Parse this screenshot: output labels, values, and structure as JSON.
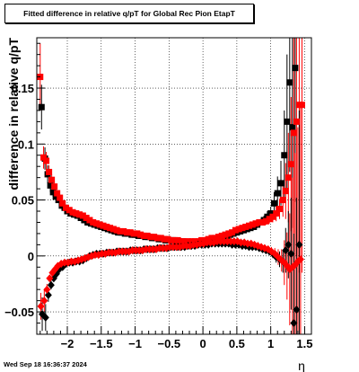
{
  "title": "Fitted difference in relative q/pT for Global Rec Pion EtapT",
  "timestamp": "Wed Sep 18 16:36:37 2024",
  "chart_data": {
    "type": "scatter",
    "title": "Fitted difference in relative q/pT for Global Rec Pion EtapT",
    "xlabel": "η",
    "ylabel": "difference in relative q/pT",
    "xlim": [
      -2.45,
      1.6
    ],
    "ylim": [
      -0.07,
      0.195
    ],
    "x_ticks": [
      -2,
      -1.5,
      -1,
      -0.5,
      0,
      0.5,
      1,
      1.5
    ],
    "x_tick_labels": [
      "−2",
      "−1.5",
      "−1",
      "−0.5",
      "0",
      "0.5",
      "1",
      "1.5"
    ],
    "y_ticks": [
      -0.05,
      0,
      0.05,
      0.1,
      0.15
    ],
    "y_tick_labels": [
      "−0.05",
      "0",
      "0.05",
      "0.1",
      "0.15"
    ],
    "grid": true,
    "colors": {
      "upper_black": "#000000",
      "upper_red": "#ff0000",
      "lower_black": "#000000",
      "lower_red": "#ff0000"
    },
    "series": [
      {
        "marker": "square",
        "color": "#000000",
        "x": [
          -2.38,
          -2.33,
          -2.29,
          -2.25,
          -2.21,
          -2.17,
          -2.13,
          -2.08,
          -2.04,
          -2.0,
          -1.95,
          -1.9,
          -1.85,
          -1.8,
          -1.75,
          -1.7,
          -1.65,
          -1.6,
          -1.55,
          -1.5,
          -1.45,
          -1.4,
          -1.35,
          -1.3,
          -1.25,
          -1.2,
          -1.15,
          -1.1,
          -1.05,
          -1.0,
          -0.95,
          -0.9,
          -0.85,
          -0.8,
          -0.75,
          -0.7,
          -0.65,
          -0.6,
          -0.55,
          -0.5,
          -0.45,
          -0.4,
          -0.35,
          -0.3,
          -0.25,
          -0.2,
          -0.15,
          -0.1,
          -0.05,
          0.0,
          0.05,
          0.1,
          0.15,
          0.2,
          0.25,
          0.3,
          0.35,
          0.4,
          0.45,
          0.5,
          0.55,
          0.6,
          0.65,
          0.7,
          0.75,
          0.8,
          0.85,
          0.9,
          0.95,
          1.0,
          1.05,
          1.1,
          1.15,
          1.2,
          1.24,
          1.28,
          1.32,
          1.36
        ],
        "y": [
          0.133,
          0.087,
          0.073,
          0.063,
          0.057,
          0.053,
          0.05,
          0.045,
          0.043,
          0.04,
          0.038,
          0.037,
          0.036,
          0.034,
          0.032,
          0.03,
          0.029,
          0.028,
          0.027,
          0.026,
          0.025,
          0.024,
          0.023,
          0.022,
          0.021,
          0.021,
          0.02,
          0.02,
          0.019,
          0.019,
          0.018,
          0.018,
          0.017,
          0.017,
          0.016,
          0.016,
          0.015,
          0.015,
          0.014,
          0.014,
          0.014,
          0.013,
          0.013,
          0.013,
          0.012,
          0.012,
          0.012,
          0.012,
          0.012,
          0.013,
          0.013,
          0.014,
          0.014,
          0.015,
          0.016,
          0.017,
          0.018,
          0.019,
          0.02,
          0.021,
          0.022,
          0.023,
          0.024,
          0.025,
          0.026,
          0.028,
          0.03,
          0.032,
          0.035,
          0.038,
          0.047,
          0.056,
          0.065,
          0.09,
          0.12,
          0.155,
          0.115,
          0.168
        ],
        "err": [
          0.02,
          0.01,
          0.008,
          0.006,
          0.004,
          0.003,
          0.002,
          0.002,
          0.001,
          0.001,
          0.001,
          0.001,
          0.001,
          0.001,
          0.001,
          0.001,
          0.001,
          0.001,
          0.001,
          0.001,
          0.001,
          0.001,
          0.001,
          0.001,
          0.001,
          0.001,
          0.001,
          0.001,
          0.001,
          0.001,
          0.001,
          0.001,
          0.001,
          0.001,
          0.001,
          0.001,
          0.001,
          0.001,
          0.001,
          0.001,
          0.001,
          0.001,
          0.001,
          0.001,
          0.001,
          0.001,
          0.001,
          0.001,
          0.001,
          0.001,
          0.001,
          0.001,
          0.001,
          0.001,
          0.001,
          0.001,
          0.001,
          0.001,
          0.001,
          0.001,
          0.001,
          0.001,
          0.002,
          0.002,
          0.002,
          0.003,
          0.003,
          0.004,
          0.005,
          0.006,
          0.01,
          0.015,
          0.02,
          0.04,
          0.06,
          0.08,
          0.09,
          0.12
        ]
      },
      {
        "marker": "square",
        "color": "#ff0000",
        "x": [
          -2.4,
          -2.35,
          -2.31,
          -2.27,
          -2.23,
          -2.19,
          -2.15,
          -2.11,
          -2.07,
          -2.02,
          -1.97,
          -1.92,
          -1.87,
          -1.82,
          -1.77,
          -1.72,
          -1.67,
          -1.62,
          -1.57,
          -1.52,
          -1.47,
          -1.42,
          -1.37,
          -1.32,
          -1.27,
          -1.22,
          -1.17,
          -1.12,
          -1.07,
          -1.02,
          -0.97,
          -0.92,
          -0.87,
          -0.82,
          -0.77,
          -0.72,
          -0.67,
          -0.62,
          -0.57,
          -0.52,
          -0.47,
          -0.42,
          -0.37,
          -0.32,
          -0.27,
          -0.22,
          -0.17,
          -0.12,
          -0.07,
          -0.02,
          0.03,
          0.08,
          0.13,
          0.18,
          0.23,
          0.28,
          0.33,
          0.38,
          0.43,
          0.48,
          0.53,
          0.58,
          0.63,
          0.68,
          0.73,
          0.78,
          0.83,
          0.88,
          0.93,
          0.98,
          1.03,
          1.08,
          1.13,
          1.18,
          1.22,
          1.26,
          1.3,
          1.34,
          1.38,
          1.42,
          1.46
        ],
        "y": [
          0.16,
          0.088,
          0.085,
          0.075,
          0.068,
          0.062,
          0.056,
          0.052,
          0.047,
          0.043,
          0.041,
          0.039,
          0.038,
          0.037,
          0.036,
          0.034,
          0.032,
          0.03,
          0.029,
          0.028,
          0.027,
          0.026,
          0.025,
          0.024,
          0.023,
          0.022,
          0.022,
          0.021,
          0.021,
          0.02,
          0.02,
          0.019,
          0.018,
          0.018,
          0.017,
          0.017,
          0.016,
          0.016,
          0.015,
          0.015,
          0.014,
          0.014,
          0.014,
          0.013,
          0.013,
          0.013,
          0.013,
          0.013,
          0.013,
          0.014,
          0.014,
          0.015,
          0.016,
          0.016,
          0.017,
          0.018,
          0.019,
          0.02,
          0.021,
          0.023,
          0.024,
          0.025,
          0.026,
          0.027,
          0.028,
          0.029,
          0.03,
          0.03,
          0.031,
          0.033,
          0.035,
          0.038,
          0.042,
          0.05,
          0.058,
          0.07,
          0.082,
          0.11,
          0.12,
          0.135,
          0.135
        ],
        "err": [
          0.03,
          0.01,
          0.008,
          0.006,
          0.005,
          0.004,
          0.003,
          0.002,
          0.002,
          0.001,
          0.001,
          0.001,
          0.001,
          0.001,
          0.001,
          0.001,
          0.001,
          0.001,
          0.001,
          0.001,
          0.001,
          0.001,
          0.001,
          0.001,
          0.001,
          0.001,
          0.001,
          0.001,
          0.001,
          0.001,
          0.001,
          0.001,
          0.001,
          0.001,
          0.001,
          0.001,
          0.001,
          0.001,
          0.001,
          0.001,
          0.001,
          0.001,
          0.001,
          0.001,
          0.001,
          0.001,
          0.001,
          0.001,
          0.001,
          0.001,
          0.001,
          0.001,
          0.001,
          0.001,
          0.001,
          0.001,
          0.001,
          0.001,
          0.001,
          0.001,
          0.001,
          0.001,
          0.001,
          0.001,
          0.001,
          0.002,
          0.002,
          0.002,
          0.003,
          0.004,
          0.005,
          0.007,
          0.009,
          0.015,
          0.025,
          0.04,
          0.06,
          0.09,
          0.12,
          0.15,
          0.15
        ]
      },
      {
        "marker": "diamond",
        "color": "#000000",
        "x": [
          -2.37,
          -2.32,
          -2.28,
          -2.24,
          -2.2,
          -2.16,
          -2.12,
          -2.07,
          -2.02,
          -1.97,
          -1.92,
          -1.87,
          -1.82,
          -1.77,
          -1.72,
          -1.67,
          -1.62,
          -1.57,
          -1.52,
          -1.47,
          -1.42,
          -1.37,
          -1.32,
          -1.27,
          -1.22,
          -1.17,
          -1.12,
          -1.07,
          -1.02,
          -0.97,
          -0.92,
          -0.87,
          -0.82,
          -0.77,
          -0.72,
          -0.67,
          -0.62,
          -0.57,
          -0.52,
          -0.47,
          -0.42,
          -0.37,
          -0.32,
          -0.27,
          -0.22,
          -0.17,
          -0.12,
          -0.07,
          -0.02,
          0.03,
          0.08,
          0.13,
          0.18,
          0.23,
          0.28,
          0.33,
          0.38,
          0.43,
          0.48,
          0.53,
          0.58,
          0.63,
          0.68,
          0.73,
          0.78,
          0.83,
          0.88,
          0.93,
          0.98,
          1.03,
          1.08,
          1.13,
          1.18,
          1.22,
          1.26,
          1.3,
          1.34,
          1.38,
          1.42
        ],
        "y": [
          -0.052,
          -0.055,
          -0.035,
          -0.026,
          -0.02,
          -0.016,
          -0.012,
          -0.01,
          -0.007,
          -0.006,
          -0.006,
          -0.005,
          -0.005,
          -0.004,
          -0.002,
          0.0,
          0.001,
          0.002,
          0.002,
          0.002,
          0.003,
          0.003,
          0.003,
          0.004,
          0.004,
          0.004,
          0.004,
          0.005,
          0.005,
          0.005,
          0.005,
          0.006,
          0.006,
          0.006,
          0.006,
          0.007,
          0.007,
          0.007,
          0.007,
          0.008,
          0.008,
          0.008,
          0.008,
          0.008,
          0.009,
          0.009,
          0.009,
          0.01,
          0.01,
          0.01,
          0.01,
          0.011,
          0.011,
          0.011,
          0.011,
          0.011,
          0.011,
          0.01,
          0.01,
          0.01,
          0.009,
          0.009,
          0.008,
          0.008,
          0.008,
          0.007,
          0.006,
          0.005,
          0.004,
          0.002,
          -0.001,
          -0.003,
          -0.005,
          0.005,
          0.01,
          0.002,
          -0.06,
          -0.048,
          0.01
        ],
        "err": [
          0.015,
          0.012,
          0.006,
          0.004,
          0.003,
          0.002,
          0.002,
          0.001,
          0.001,
          0.001,
          0.001,
          0.001,
          0.001,
          0.001,
          0.001,
          0.001,
          0.001,
          0.001,
          0.001,
          0.001,
          0.001,
          0.001,
          0.001,
          0.001,
          0.001,
          0.001,
          0.001,
          0.001,
          0.001,
          0.001,
          0.001,
          0.001,
          0.001,
          0.001,
          0.001,
          0.001,
          0.001,
          0.001,
          0.001,
          0.001,
          0.001,
          0.001,
          0.001,
          0.001,
          0.001,
          0.001,
          0.001,
          0.001,
          0.001,
          0.001,
          0.001,
          0.001,
          0.001,
          0.001,
          0.001,
          0.001,
          0.001,
          0.001,
          0.001,
          0.001,
          0.001,
          0.001,
          0.001,
          0.001,
          0.001,
          0.002,
          0.002,
          0.002,
          0.003,
          0.004,
          0.005,
          0.007,
          0.01,
          0.02,
          0.03,
          0.05,
          0.08,
          0.1,
          0.12
        ]
      },
      {
        "marker": "diamond",
        "color": "#ff0000",
        "x": [
          -2.39,
          -2.34,
          -2.3,
          -2.26,
          -2.22,
          -2.18,
          -2.14,
          -2.09,
          -2.04,
          -1.99,
          -1.94,
          -1.89,
          -1.84,
          -1.79,
          -1.74,
          -1.69,
          -1.64,
          -1.59,
          -1.54,
          -1.49,
          -1.44,
          -1.39,
          -1.34,
          -1.29,
          -1.24,
          -1.19,
          -1.14,
          -1.09,
          -1.04,
          -0.99,
          -0.94,
          -0.89,
          -0.84,
          -0.79,
          -0.74,
          -0.69,
          -0.64,
          -0.59,
          -0.54,
          -0.49,
          -0.44,
          -0.39,
          -0.34,
          -0.29,
          -0.24,
          -0.19,
          -0.14,
          -0.09,
          -0.04,
          0.01,
          0.06,
          0.11,
          0.16,
          0.21,
          0.26,
          0.31,
          0.36,
          0.41,
          0.46,
          0.51,
          0.56,
          0.61,
          0.66,
          0.71,
          0.76,
          0.81,
          0.86,
          0.91,
          0.96,
          1.01,
          1.06,
          1.11,
          1.16,
          1.2,
          1.24,
          1.28,
          1.32,
          1.36,
          1.4,
          1.44
        ],
        "y": [
          -0.045,
          -0.04,
          -0.03,
          -0.02,
          -0.015,
          -0.012,
          -0.009,
          -0.007,
          -0.006,
          -0.006,
          -0.005,
          -0.005,
          -0.004,
          -0.003,
          -0.002,
          -0.001,
          0.0,
          0.001,
          0.001,
          0.002,
          0.002,
          0.003,
          0.003,
          0.003,
          0.004,
          0.004,
          0.004,
          0.004,
          0.005,
          0.005,
          0.005,
          0.005,
          0.006,
          0.006,
          0.006,
          0.006,
          0.007,
          0.007,
          0.007,
          0.008,
          0.008,
          0.008,
          0.008,
          0.009,
          0.009,
          0.009,
          0.01,
          0.01,
          0.011,
          0.011,
          0.012,
          0.012,
          0.012,
          0.013,
          0.013,
          0.013,
          0.013,
          0.013,
          0.013,
          0.013,
          0.012,
          0.012,
          0.011,
          0.011,
          0.01,
          0.009,
          0.008,
          0.007,
          0.006,
          0.004,
          0.002,
          -0.001,
          -0.004,
          -0.006,
          -0.009,
          -0.012,
          -0.01,
          -0.008,
          -0.005,
          -0.003
        ],
        "err": [
          0.012,
          0.01,
          0.005,
          0.003,
          0.002,
          0.002,
          0.001,
          0.001,
          0.001,
          0.001,
          0.001,
          0.001,
          0.001,
          0.001,
          0.001,
          0.001,
          0.001,
          0.001,
          0.001,
          0.001,
          0.001,
          0.001,
          0.001,
          0.001,
          0.001,
          0.001,
          0.001,
          0.001,
          0.001,
          0.001,
          0.001,
          0.001,
          0.001,
          0.001,
          0.001,
          0.001,
          0.001,
          0.001,
          0.001,
          0.001,
          0.001,
          0.001,
          0.001,
          0.001,
          0.001,
          0.001,
          0.001,
          0.001,
          0.001,
          0.001,
          0.001,
          0.001,
          0.001,
          0.001,
          0.001,
          0.001,
          0.001,
          0.001,
          0.001,
          0.001,
          0.001,
          0.001,
          0.001,
          0.001,
          0.001,
          0.002,
          0.002,
          0.002,
          0.003,
          0.004,
          0.005,
          0.007,
          0.01,
          0.02,
          0.03,
          0.05,
          0.08,
          0.1,
          0.12,
          0.14
        ]
      }
    ]
  }
}
